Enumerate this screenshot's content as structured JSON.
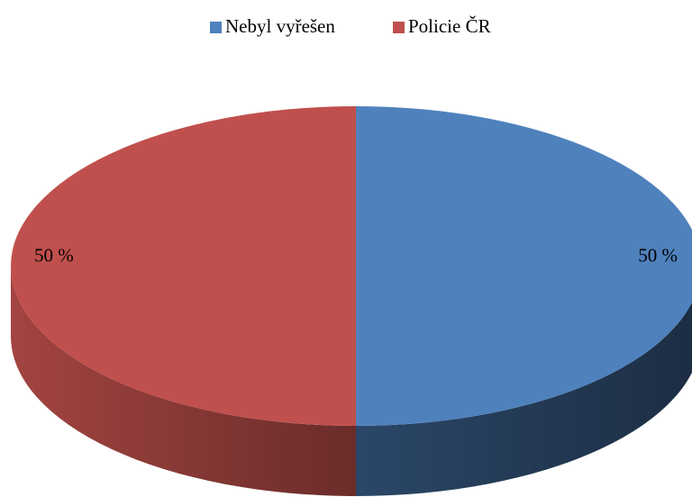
{
  "chart_data": {
    "type": "pie",
    "categories": [
      "Nebyl vyřešen",
      "Policie ČR"
    ],
    "values": [
      50,
      50
    ],
    "value_labels": [
      "50 %",
      "50 %"
    ],
    "colors": [
      "#4f81bd",
      "#c0504d"
    ]
  }
}
